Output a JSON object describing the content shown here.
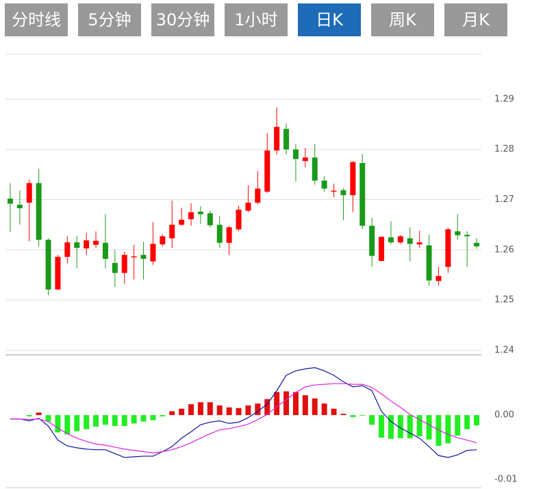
{
  "tabs": [
    "分时线",
    "5分钟",
    "30分钟",
    "1小时",
    "日K",
    "周K",
    "月K"
  ],
  "active_tab": 4,
  "chart_data": [
    {
      "type": "candlestick",
      "up_color": "#ff0000",
      "down_color": "#1a9a1a",
      "grid": true,
      "ylim": [
        1.2391,
        1.299
      ],
      "yticks": [
        1.24,
        1.25,
        1.26,
        1.27,
        1.28,
        1.29
      ],
      "open": [
        1.2702,
        1.269,
        1.2694,
        1.2733,
        1.262,
        1.2521,
        1.2586,
        1.2615,
        1.2603,
        1.261,
        1.2614,
        1.2574,
        1.2554,
        1.2585,
        1.259,
        1.2577,
        1.2611,
        1.2623,
        1.265,
        1.2661,
        1.2676,
        1.2673,
        1.265,
        1.2614,
        1.2641,
        1.2678,
        1.2694,
        1.2716,
        1.2798,
        1.2841,
        1.28,
        1.2777,
        1.2784,
        1.2738,
        1.2716,
        1.2719,
        1.2709,
        1.2773,
        1.2648,
        1.2578,
        1.2625,
        1.2615,
        1.2623,
        1.2611,
        1.2609,
        1.2538,
        1.2566,
        1.2637,
        1.263,
        1.2614
      ],
      "high": [
        1.2733,
        1.2718,
        1.274,
        1.2761,
        1.2623,
        1.259,
        1.2627,
        1.2627,
        1.2634,
        1.2637,
        1.2671,
        1.26,
        1.2596,
        1.261,
        1.2616,
        1.2655,
        1.2631,
        1.2698,
        1.2684,
        1.2693,
        1.2687,
        1.2678,
        1.2668,
        1.2648,
        1.2688,
        1.2729,
        1.2757,
        1.2832,
        1.2884,
        1.2852,
        1.2811,
        1.2803,
        1.2811,
        1.2747,
        1.2732,
        1.2723,
        1.2777,
        1.2791,
        1.2664,
        1.2627,
        1.2657,
        1.263,
        1.2645,
        1.2638,
        1.263,
        1.2566,
        1.2644,
        1.2671,
        1.2637,
        1.2623
      ],
      "low": [
        1.2636,
        1.265,
        1.2617,
        1.2607,
        1.2509,
        1.252,
        1.2573,
        1.2563,
        1.259,
        1.2604,
        1.2563,
        1.2526,
        1.2532,
        1.2541,
        1.2541,
        1.257,
        1.2607,
        1.2604,
        1.2648,
        1.2648,
        1.2652,
        1.2645,
        1.2604,
        1.259,
        1.2637,
        1.2675,
        1.2691,
        1.2713,
        1.279,
        1.279,
        1.2736,
        1.2764,
        1.273,
        1.2716,
        1.2705,
        1.2659,
        1.2675,
        1.2642,
        1.2566,
        1.2577,
        1.2611,
        1.2611,
        1.2577,
        1.2604,
        1.2529,
        1.2529,
        1.2554,
        1.262,
        1.2566,
        1.2602
      ],
      "close": [
        1.2692,
        1.2683,
        1.2733,
        1.262,
        1.2521,
        1.2586,
        1.2615,
        1.2604,
        1.2619,
        1.2618,
        1.2582,
        1.2554,
        1.259,
        1.2587,
        1.2582,
        1.2612,
        1.2627,
        1.265,
        1.266,
        1.2675,
        1.2671,
        1.2649,
        1.2614,
        1.2645,
        1.268,
        1.2694,
        1.2722,
        1.2798,
        1.2845,
        1.28,
        1.2781,
        1.2784,
        1.2738,
        1.2722,
        1.2718,
        1.2709,
        1.2775,
        1.2648,
        1.2588,
        1.2626,
        1.2615,
        1.2627,
        1.2612,
        1.2615,
        1.2539,
        1.2548,
        1.2641,
        1.2629,
        1.2627,
        1.2607
      ]
    },
    {
      "type": "macd",
      "up_color": "#e01010",
      "down_color": "#22ee22",
      "ylim": [
        -0.0113,
        0.0094
      ],
      "yticks": [
        {
          "value": 0,
          "label": "0.00"
        },
        {
          "value": -0.01,
          "label": "-0.01"
        }
      ],
      "values": [
        0,
        0,
        -0.0002,
        0.0004,
        -0.001,
        -0.0027,
        -0.003,
        -0.0025,
        -0.0022,
        -0.0018,
        -0.0015,
        -0.0017,
        -0.0017,
        -0.0013,
        -0.001,
        -0.0008,
        -0.0002,
        0.0006,
        0.001,
        0.0017,
        0.002,
        0.002,
        0.0015,
        0.0012,
        0.0011,
        0.0015,
        0.0018,
        0.0025,
        0.0036,
        0.0037,
        0.0036,
        0.0031,
        0.0026,
        0.0018,
        0.001,
        0.0002,
        -0.0003,
        -0.0001,
        -0.0015,
        -0.0035,
        -0.0037,
        -0.0036,
        -0.0036,
        -0.0033,
        -0.0038,
        -0.0048,
        -0.0044,
        -0.0032,
        -0.0022,
        -0.0016
      ],
      "series": [
        {
          "color": "#1010a0",
          "values": [
            -0.0006,
            -0.0006,
            -0.0009,
            -0.0005,
            -0.0017,
            -0.0039,
            -0.0048,
            -0.0051,
            -0.0053,
            -0.0054,
            -0.0054,
            -0.006,
            -0.0066,
            -0.0065,
            -0.0064,
            -0.0064,
            -0.0057,
            -0.0049,
            -0.0036,
            -0.0026,
            -0.0015,
            -0.0011,
            -0.0009,
            -0.0013,
            -0.0011,
            -0.0004,
            0.0006,
            0.0017,
            0.0038,
            0.0062,
            0.0069,
            0.0072,
            0.0074,
            0.0069,
            0.0062,
            0.0052,
            0.0044,
            0.0046,
            0.0038,
            0.0006,
            -0.001,
            -0.002,
            -0.0028,
            -0.0036,
            -0.0049,
            -0.0063,
            -0.0066,
            -0.0062,
            -0.0055,
            -0.0054
          ]
        },
        {
          "color": "#e020e0",
          "values": [
            -0.0006,
            -0.0006,
            -0.0007,
            -0.0006,
            -0.001,
            -0.002,
            -0.0029,
            -0.0036,
            -0.0041,
            -0.0045,
            -0.0047,
            -0.005,
            -0.0053,
            -0.0055,
            -0.0057,
            -0.0059,
            -0.0057,
            -0.0054,
            -0.0049,
            -0.0043,
            -0.0036,
            -0.0029,
            -0.0023,
            -0.0021,
            -0.0018,
            -0.0014,
            -0.0007,
            0.0001,
            0.0013,
            0.0024,
            0.0035,
            0.0044,
            0.0047,
            0.0048,
            0.0049,
            0.0049,
            0.0048,
            0.0048,
            0.0043,
            0.0033,
            0.0022,
            0.0012,
            0.0001,
            -0.0007,
            -0.0015,
            -0.0023,
            -0.003,
            -0.0035,
            -0.0039,
            -0.0043
          ]
        }
      ]
    }
  ]
}
